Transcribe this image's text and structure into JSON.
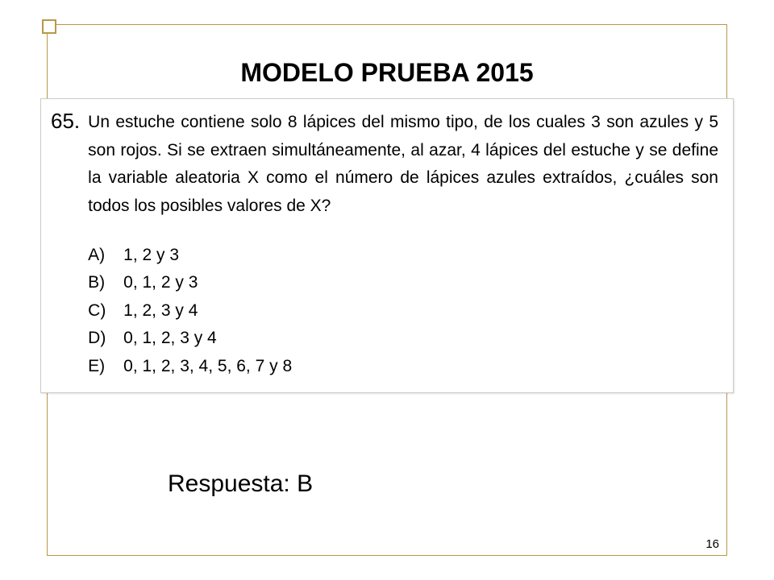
{
  "title": "MODELO PRUEBA 2015",
  "question": {
    "number": "65.",
    "text": "Un estuche contiene solo 8 lápices del mismo tipo, de los cuales 3 son azules y 5 son rojos. Si se extraen simultáneamente, al azar, 4 lápices del estuche y se define la variable aleatoria X como el número de lápices azules extraídos, ¿cuáles son todos los posibles valores de X?",
    "options": [
      {
        "letter": "A)",
        "text": "1, 2 y 3"
      },
      {
        "letter": "B)",
        "text": "0, 1, 2 y 3"
      },
      {
        "letter": "C)",
        "text": "1, 2, 3 y 4"
      },
      {
        "letter": "D)",
        "text": "0, 1, 2, 3 y 4"
      },
      {
        "letter": "E)",
        "text": "0, 1, 2, 3, 4, 5, 6, 7 y 8"
      }
    ]
  },
  "answer": "Respuesta: B",
  "page_number": "16",
  "colors": {
    "frame_border": "#b89848",
    "box_border": "#cccccc",
    "text": "#000000",
    "background": "#ffffff"
  }
}
